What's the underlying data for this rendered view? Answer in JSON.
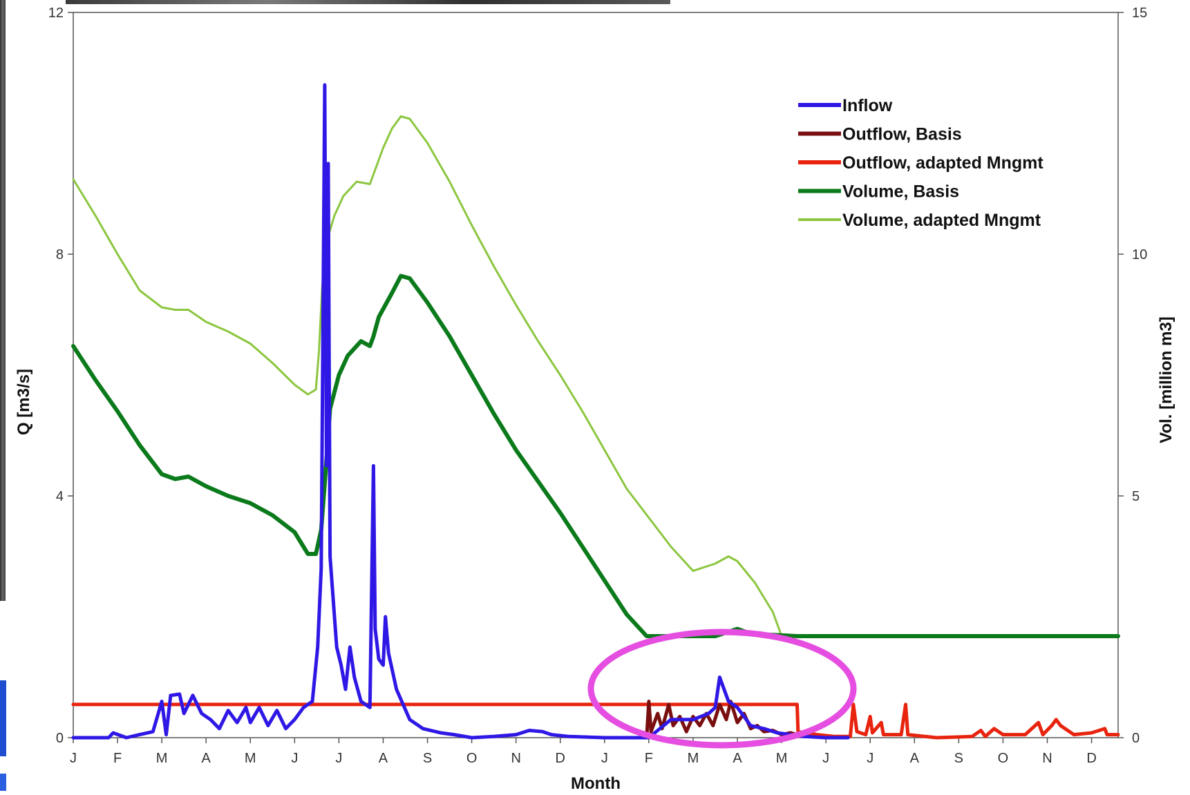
{
  "chart_data": {
    "type": "line",
    "xlabel": "Month",
    "ylabel_left": "Q [m3/s]",
    "ylabel_right": "Vol. [million m3]",
    "ylim_left": [
      0,
      12
    ],
    "ylim_right": [
      0,
      15
    ],
    "yticks_left": [
      "0",
      "4",
      "8",
      "12"
    ],
    "yticks_right": [
      "0",
      "5",
      "10",
      "15"
    ],
    "month_ticks": [
      "J",
      "F",
      "M",
      "A",
      "M",
      "J",
      "J",
      "A",
      "S",
      "O",
      "N",
      "D",
      "J",
      "F",
      "M",
      "A",
      "M",
      "J",
      "J",
      "A",
      "S",
      "O",
      "N",
      "D"
    ],
    "x_unit": "month index from start (0 = first J)",
    "xlim": [
      0,
      23.6
    ],
    "legend_position": "top-right",
    "grid": false,
    "annotation": "magenta ellipse highlighting Feb–May of second year",
    "series": [
      {
        "name": "Inflow",
        "axis": "left",
        "color": "#2f18e6",
        "width": 5,
        "points": [
          [
            0,
            0
          ],
          [
            0.8,
            0
          ],
          [
            0.9,
            0.08
          ],
          [
            1.2,
            0
          ],
          [
            1.5,
            0.05
          ],
          [
            1.8,
            0.1
          ],
          [
            2.0,
            0.6
          ],
          [
            2.1,
            0.05
          ],
          [
            2.2,
            0.7
          ],
          [
            2.4,
            0.72
          ],
          [
            2.5,
            0.4
          ],
          [
            2.7,
            0.7
          ],
          [
            2.9,
            0.4
          ],
          [
            3.1,
            0.3
          ],
          [
            3.3,
            0.15
          ],
          [
            3.5,
            0.45
          ],
          [
            3.7,
            0.25
          ],
          [
            3.9,
            0.5
          ],
          [
            4.0,
            0.25
          ],
          [
            4.2,
            0.5
          ],
          [
            4.4,
            0.2
          ],
          [
            4.6,
            0.45
          ],
          [
            4.8,
            0.15
          ],
          [
            5.0,
            0.3
          ],
          [
            5.2,
            0.5
          ],
          [
            5.4,
            0.6
          ],
          [
            5.52,
            1.5
          ],
          [
            5.6,
            2.8
          ],
          [
            5.68,
            10.8
          ],
          [
            5.72,
            4.5
          ],
          [
            5.76,
            9.5
          ],
          [
            5.8,
            3.0
          ],
          [
            5.85,
            2.5
          ],
          [
            5.95,
            1.5
          ],
          [
            6.05,
            1.2
          ],
          [
            6.15,
            0.8
          ],
          [
            6.25,
            1.5
          ],
          [
            6.35,
            1.0
          ],
          [
            6.5,
            0.6
          ],
          [
            6.7,
            0.5
          ],
          [
            6.78,
            4.5
          ],
          [
            6.82,
            1.8
          ],
          [
            6.9,
            1.3
          ],
          [
            7.0,
            1.2
          ],
          [
            7.05,
            2.0
          ],
          [
            7.12,
            1.4
          ],
          [
            7.3,
            0.8
          ],
          [
            7.6,
            0.3
          ],
          [
            7.9,
            0.15
          ],
          [
            8.3,
            0.08
          ],
          [
            8.6,
            0.05
          ],
          [
            9.0,
            0.0
          ],
          [
            9.5,
            0.02
          ],
          [
            10.0,
            0.05
          ],
          [
            10.3,
            0.12
          ],
          [
            10.6,
            0.1
          ],
          [
            10.8,
            0.05
          ],
          [
            11.2,
            0.02
          ],
          [
            12.0,
            0.0
          ],
          [
            13.0,
            0.0
          ],
          [
            13.5,
            0.3
          ],
          [
            14.0,
            0.3
          ],
          [
            14.35,
            0.4
          ],
          [
            14.5,
            0.5
          ],
          [
            14.6,
            1.0
          ],
          [
            14.7,
            0.8
          ],
          [
            14.8,
            0.6
          ],
          [
            15.0,
            0.5
          ],
          [
            15.3,
            0.2
          ],
          [
            15.6,
            0.15
          ],
          [
            15.9,
            0.08
          ],
          [
            16.2,
            0.05
          ],
          [
            16.5,
            0.02
          ],
          [
            17.0,
            0.0
          ],
          [
            17.5,
            0.0
          ]
        ]
      },
      {
        "name": "Outflow, Basis",
        "axis": "left",
        "color": "#7a0f0f",
        "width": 5,
        "points": [
          [
            12.95,
            0
          ],
          [
            13.0,
            0.6
          ],
          [
            13.05,
            0.1
          ],
          [
            13.2,
            0.4
          ],
          [
            13.3,
            0.15
          ],
          [
            13.45,
            0.55
          ],
          [
            13.55,
            0.2
          ],
          [
            13.7,
            0.35
          ],
          [
            13.85,
            0.1
          ],
          [
            14.0,
            0.35
          ],
          [
            14.15,
            0.2
          ],
          [
            14.3,
            0.4
          ],
          [
            14.45,
            0.2
          ],
          [
            14.6,
            0.55
          ],
          [
            14.75,
            0.3
          ],
          [
            14.85,
            0.6
          ],
          [
            15.0,
            0.25
          ],
          [
            15.15,
            0.4
          ],
          [
            15.3,
            0.15
          ],
          [
            15.45,
            0.2
          ],
          [
            15.6,
            0.1
          ],
          [
            15.8,
            0.12
          ],
          [
            16.0,
            0.05
          ],
          [
            16.2,
            0.08
          ],
          [
            16.35,
            0.05
          ]
        ]
      },
      {
        "name": "Outflow, adapted Mngmt",
        "axis": "left",
        "color": "#e8240f",
        "width": 5,
        "points": [
          [
            0,
            0.55
          ],
          [
            16.35,
            0.55
          ],
          [
            16.37,
            0.1
          ],
          [
            16.8,
            0.05
          ],
          [
            17.2,
            0.02
          ],
          [
            17.55,
            0.02
          ],
          [
            17.62,
            0.55
          ],
          [
            17.7,
            0.1
          ],
          [
            17.9,
            0.05
          ],
          [
            18.0,
            0.35
          ],
          [
            18.05,
            0.08
          ],
          [
            18.25,
            0.25
          ],
          [
            18.3,
            0.05
          ],
          [
            18.7,
            0.05
          ],
          [
            18.8,
            0.55
          ],
          [
            18.85,
            0.05
          ],
          [
            19.5,
            0.0
          ],
          [
            20.3,
            0.02
          ],
          [
            20.5,
            0.12
          ],
          [
            20.6,
            0.02
          ],
          [
            20.8,
            0.15
          ],
          [
            20.9,
            0.1
          ],
          [
            21.0,
            0.05
          ],
          [
            21.5,
            0.05
          ],
          [
            21.8,
            0.25
          ],
          [
            21.9,
            0.05
          ],
          [
            22.1,
            0.2
          ],
          [
            22.2,
            0.3
          ],
          [
            22.3,
            0.2
          ],
          [
            22.6,
            0.05
          ],
          [
            23.0,
            0.08
          ],
          [
            23.3,
            0.15
          ],
          [
            23.35,
            0.05
          ],
          [
            23.6,
            0.05
          ]
        ]
      },
      {
        "name": "Volume, Basis",
        "axis": "right",
        "color": "#0b7a1b",
        "width": 6,
        "points": [
          [
            0,
            8.1
          ],
          [
            0.5,
            7.4
          ],
          [
            1.0,
            6.75
          ],
          [
            1.5,
            6.05
          ],
          [
            2.0,
            5.45
          ],
          [
            2.3,
            5.35
          ],
          [
            2.6,
            5.4
          ],
          [
            3.0,
            5.2
          ],
          [
            3.5,
            5.0
          ],
          [
            4.0,
            4.85
          ],
          [
            4.5,
            4.6
          ],
          [
            5.0,
            4.25
          ],
          [
            5.3,
            3.8
          ],
          [
            5.48,
            3.8
          ],
          [
            5.6,
            4.3
          ],
          [
            5.7,
            5.5
          ],
          [
            5.8,
            6.8
          ],
          [
            6.0,
            7.5
          ],
          [
            6.2,
            7.9
          ],
          [
            6.5,
            8.2
          ],
          [
            6.7,
            8.1
          ],
          [
            6.78,
            8.3
          ],
          [
            6.9,
            8.7
          ],
          [
            7.2,
            9.2
          ],
          [
            7.4,
            9.55
          ],
          [
            7.6,
            9.5
          ],
          [
            8.0,
            9.0
          ],
          [
            8.5,
            8.3
          ],
          [
            9.0,
            7.5
          ],
          [
            9.5,
            6.7
          ],
          [
            10.0,
            5.95
          ],
          [
            10.5,
            5.3
          ],
          [
            11.0,
            4.65
          ],
          [
            11.5,
            3.95
          ],
          [
            12.0,
            3.25
          ],
          [
            12.5,
            2.55
          ],
          [
            12.95,
            2.1
          ],
          [
            14.5,
            2.1
          ],
          [
            15.0,
            2.25
          ],
          [
            15.3,
            2.15
          ],
          [
            16.35,
            2.1
          ],
          [
            23.6,
            2.1
          ]
        ]
      },
      {
        "name": "Volume, adapted Mngmt",
        "axis": "right",
        "color": "#8cc63f",
        "width": 3,
        "points": [
          [
            0,
            11.55
          ],
          [
            0.5,
            10.8
          ],
          [
            1.0,
            10.0
          ],
          [
            1.5,
            9.25
          ],
          [
            2.0,
            8.9
          ],
          [
            2.3,
            8.85
          ],
          [
            2.6,
            8.85
          ],
          [
            3.0,
            8.6
          ],
          [
            3.5,
            8.4
          ],
          [
            4.0,
            8.15
          ],
          [
            4.5,
            7.75
          ],
          [
            5.0,
            7.3
          ],
          [
            5.3,
            7.1
          ],
          [
            5.48,
            7.2
          ],
          [
            5.55,
            8.0
          ],
          [
            5.62,
            9.3
          ],
          [
            5.7,
            10.2
          ],
          [
            5.9,
            10.8
          ],
          [
            6.1,
            11.2
          ],
          [
            6.4,
            11.5
          ],
          [
            6.7,
            11.45
          ],
          [
            6.8,
            11.7
          ],
          [
            7.0,
            12.2
          ],
          [
            7.2,
            12.6
          ],
          [
            7.4,
            12.85
          ],
          [
            7.6,
            12.8
          ],
          [
            8.0,
            12.3
          ],
          [
            8.5,
            11.5
          ],
          [
            9.0,
            10.6
          ],
          [
            9.5,
            9.75
          ],
          [
            10.0,
            8.95
          ],
          [
            10.5,
            8.2
          ],
          [
            11.0,
            7.5
          ],
          [
            11.5,
            6.75
          ],
          [
            12.0,
            5.95
          ],
          [
            12.5,
            5.15
          ],
          [
            13.0,
            4.55
          ],
          [
            13.5,
            3.95
          ],
          [
            14.0,
            3.45
          ],
          [
            14.5,
            3.6
          ],
          [
            14.8,
            3.75
          ],
          [
            15.0,
            3.65
          ],
          [
            15.4,
            3.2
          ],
          [
            15.8,
            2.6
          ],
          [
            16.0,
            2.1
          ],
          [
            16.35,
            2.1
          ],
          [
            23.6,
            2.1
          ]
        ]
      }
    ]
  }
}
